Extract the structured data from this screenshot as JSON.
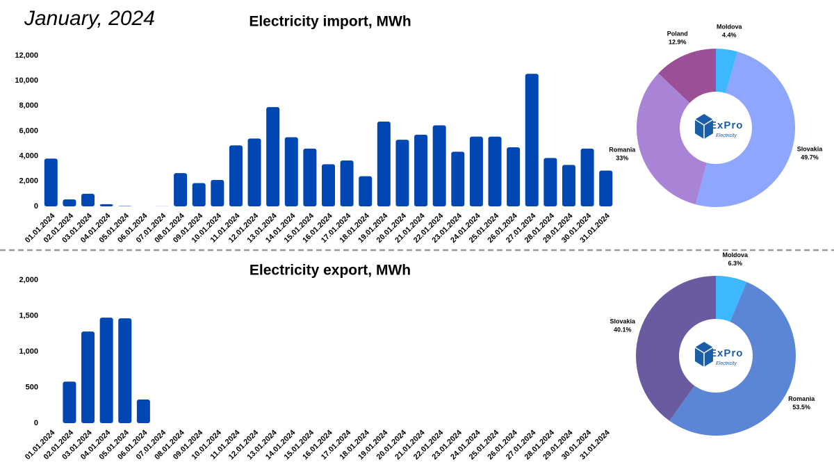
{
  "header": {
    "title": "January, 2024"
  },
  "logo": {
    "name": "ExPro",
    "tagline": "Electricity"
  },
  "chart_data": [
    {
      "type": "bar",
      "title": "Electricity import, MWh",
      "color": "#0047b3",
      "categories": [
        "01.01.2024",
        "02.01.2024",
        "03.01.2024",
        "04.01.2024",
        "05.01.2024",
        "06.01.2024",
        "07.01.2024",
        "08.01.2024",
        "09.01.2024",
        "10.01.2024",
        "11.01.2024",
        "12.01.2024",
        "13.01.2024",
        "14.01.2024",
        "15.01.2024",
        "16.01.2024",
        "17.01.2024",
        "18.01.2024",
        "19.01.2024",
        "20.01.2024",
        "21.01.2024",
        "22.01.2024",
        "23.01.2024",
        "24.01.2024",
        "25.01.2024",
        "26.01.2024",
        "27.01.2024",
        "28.01.2024",
        "29.01.2024",
        "30.01.2024",
        "31.01.2024"
      ],
      "values": [
        3800,
        550,
        1000,
        170,
        30,
        0,
        10,
        2650,
        1850,
        2100,
        4850,
        5400,
        7900,
        5500,
        4600,
        3350,
        3650,
        2400,
        6750,
        5300,
        5700,
        6450,
        4350,
        5550,
        5550,
        4700,
        10550,
        3850,
        3300,
        4600,
        2850
      ],
      "ylim": [
        0,
        12000
      ],
      "yticks": [
        0,
        {
          "value": 2000,
          "label": "2,000"
        },
        {
          "value": 4000,
          "label": "4,000"
        },
        {
          "value": 6000,
          "label": "6,000"
        },
        {
          "value": 8000,
          "label": "8,000"
        },
        {
          "value": 10000,
          "label": "10,000"
        },
        {
          "value": 12000,
          "label": "12,000"
        }
      ]
    },
    {
      "type": "donut",
      "categories": [
        "Moldova",
        "Slovakia",
        "Romania",
        "Poland"
      ],
      "values": [
        4.4,
        49.7,
        33,
        12.9
      ],
      "value_labels": [
        "4.4%",
        "49.7%",
        "33%",
        "12.9%"
      ],
      "colors": [
        "#3db8ff",
        "#8fa6ff",
        "#a883d6",
        "#9b4f96"
      ]
    },
    {
      "type": "bar",
      "title": "Electricity export, MWh",
      "color": "#0047b3",
      "categories": [
        "01.01.2024",
        "02.01.2024",
        "03.01.2024",
        "04.01.2024",
        "05.01.2024",
        "06.01.2024",
        "07.01.2024",
        "08.01.2024",
        "09.01.2024",
        "10.01.2024",
        "11.01.2024",
        "12.01.2024",
        "13.01.2024",
        "14.01.2024",
        "15.01.2024",
        "16.01.2024",
        "17.01.2024",
        "18.01.2024",
        "19.01.2024",
        "20.01.2024",
        "21.01.2024",
        "22.01.2024",
        "23.01.2024",
        "24.01.2024",
        "25.01.2024",
        "26.01.2024",
        "27.01.2024",
        "28.01.2024",
        "29.01.2024",
        "30.01.2024",
        "31.01.2024"
      ],
      "values": [
        0,
        580,
        1280,
        1475,
        1465,
        330,
        0,
        0,
        0,
        0,
        0,
        0,
        0,
        0,
        0,
        0,
        0,
        0,
        0,
        0,
        0,
        0,
        0,
        0,
        0,
        0,
        0,
        0,
        0,
        0,
        0
      ],
      "ylim": [
        0,
        2000
      ],
      "yticks": [
        0,
        500,
        {
          "value": 1000,
          "label": "1,000"
        },
        {
          "value": 1500,
          "label": "1,500"
        },
        {
          "value": 2000,
          "label": "2,000"
        }
      ]
    },
    {
      "type": "donut",
      "categories": [
        "Moldova",
        "Romania",
        "Slovakia"
      ],
      "values": [
        6.3,
        53.5,
        40.1
      ],
      "value_labels": [
        "6.3%",
        "53.5%",
        "40.1%"
      ],
      "colors": [
        "#3db8ff",
        "#5b86d6",
        "#6a5aa0"
      ]
    }
  ]
}
